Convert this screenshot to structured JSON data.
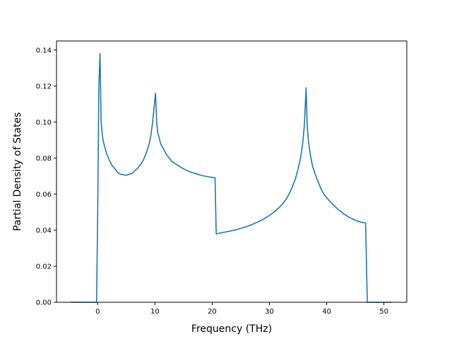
{
  "chart_data": {
    "type": "line",
    "title": "",
    "xlabel": "Frequency (THz)",
    "ylabel": "Partial Density of States",
    "xlim": [
      -7.2,
      54
    ],
    "ylim": [
      0,
      0.145
    ],
    "xticks": [
      0,
      10,
      20,
      30,
      40,
      50
    ],
    "yticks": [
      0.0,
      0.02,
      0.04,
      0.06,
      0.08,
      0.1,
      0.12,
      0.14
    ],
    "ytick_labels": [
      "0.00",
      "0.02",
      "0.04",
      "0.06",
      "0.08",
      "0.10",
      "0.12",
      "0.14"
    ],
    "grid": false,
    "legend": false,
    "line_color": "#1f77b4",
    "series": [
      {
        "x": [
          -4.7,
          -0.2,
          0.0,
          0.2,
          0.4,
          0.6,
          0.8,
          1.0,
          1.5,
          2.0,
          2.5,
          3.0,
          3.5,
          4.0,
          5.0,
          6.0,
          6.5,
          7.0,
          7.5,
          8.0,
          8.5,
          9.0,
          9.3,
          9.6,
          9.9,
          10.1,
          10.3,
          10.5,
          11.0,
          11.5,
          12.0,
          12.5,
          13.0,
          14.0,
          15.0,
          16.0,
          17.0,
          18.0,
          19.0,
          20.5,
          20.7,
          21.0,
          22.0,
          23.0,
          24.0,
          25.0,
          26.0,
          27.0,
          28.0,
          29.0,
          30.0,
          31.0,
          32.0,
          33.0,
          33.5,
          34.0,
          34.5,
          35.0,
          35.5,
          35.8,
          36.1,
          36.4,
          36.6,
          36.8,
          37.0,
          37.2,
          37.5,
          38.0,
          38.5,
          39.0,
          39.5,
          40.0,
          41.0,
          42.0,
          43.0,
          44.0,
          45.0,
          46.0,
          46.8,
          47.1,
          47.5,
          51.4
        ],
        "y": [
          0.0,
          0.0,
          0.05,
          0.12,
          0.138,
          0.1,
          0.093,
          0.089,
          0.083,
          0.079,
          0.076,
          0.074,
          0.072,
          0.071,
          0.0705,
          0.0715,
          0.073,
          0.0745,
          0.0765,
          0.079,
          0.083,
          0.088,
          0.093,
          0.1,
          0.11,
          0.116,
          0.1,
          0.094,
          0.088,
          0.085,
          0.082,
          0.08,
          0.078,
          0.076,
          0.074,
          0.0725,
          0.0715,
          0.0705,
          0.0698,
          0.069,
          0.038,
          0.0382,
          0.0388,
          0.0394,
          0.0401,
          0.041,
          0.042,
          0.0432,
          0.0446,
          0.0462,
          0.0482,
          0.0505,
          0.0535,
          0.0575,
          0.0605,
          0.064,
          0.068,
          0.074,
          0.081,
          0.088,
          0.098,
          0.119,
          0.098,
          0.09,
          0.085,
          0.081,
          0.076,
          0.071,
          0.067,
          0.063,
          0.06,
          0.058,
          0.0545,
          0.0515,
          0.049,
          0.047,
          0.0455,
          0.0444,
          0.044,
          0.0,
          0.0,
          0.0
        ]
      }
    ]
  }
}
